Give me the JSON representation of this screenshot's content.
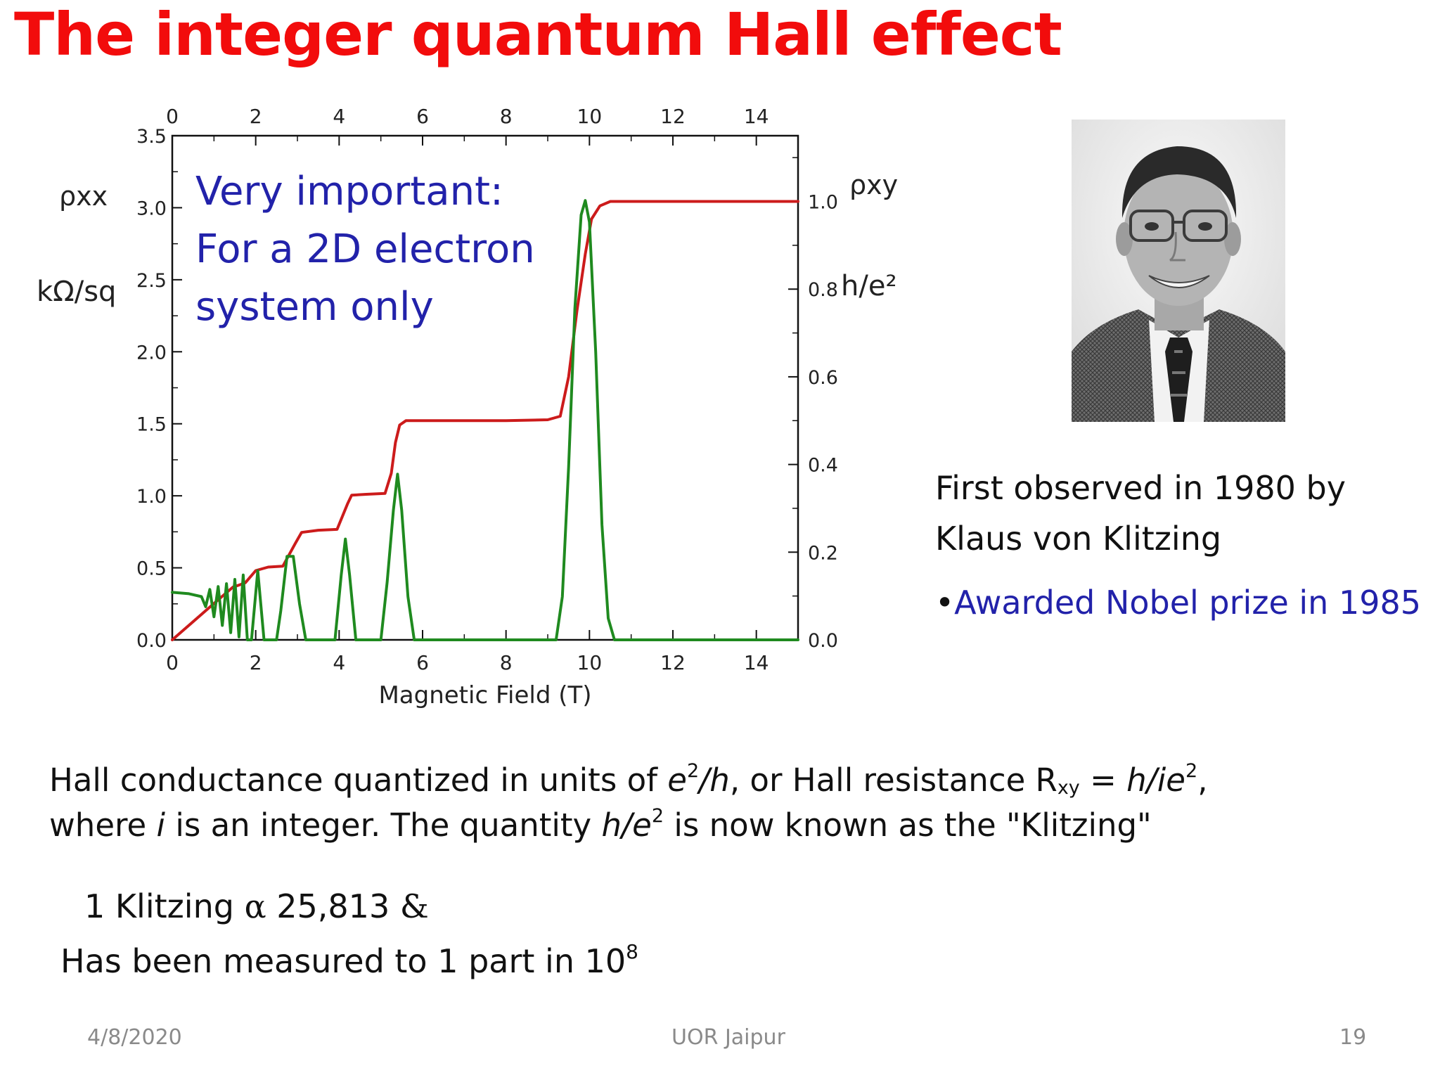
{
  "slide": {
    "title": "The integer quantum Hall effect",
    "note_lines": [
      "Very important:",
      "For a 2D electron",
      "system only"
    ],
    "credit_lines": [
      "First observed in 1980 by",
      "Klaus von Klitzing"
    ],
    "nobel_bullet": "•",
    "nobel_text": "Awarded Nobel prize in 1985",
    "body": {
      "l1a": "Hall conductance quantized in units of ",
      "e": "e",
      "sq": "2",
      "slash_h": "/h",
      "l1b": ", or Hall resistance R",
      "xy": "xy",
      "l1c": " = ",
      "h_ie": "h/ie",
      "comma": ",",
      "l2a": "where ",
      "i": "i",
      "l2b": " is an integer. The quantity ",
      "h_e": "h/e",
      "l2c": " is now known as the \"Klitzing\""
    },
    "klitzing_line": {
      "a": "1 Klitzing ",
      "alpha": "α",
      "b": " 25,813 ",
      "amp": "&"
    },
    "measured": {
      "text": "Has been measured to 1 part in 10",
      "exp": "8"
    },
    "footer": {
      "date": "4/8/2020",
      "center": "UOR Jaipur",
      "page": "19"
    },
    "photo_icon": "portrait-photo"
  },
  "chart_data": {
    "type": "line",
    "xlabel": "Magnetic Field  (T)",
    "xlim": [
      0,
      15
    ],
    "x_ticks": [
      0,
      2,
      4,
      6,
      8,
      10,
      12,
      14
    ],
    "y_left": {
      "label_symbol": "ρxx",
      "label_unit": "kΩ/sq",
      "lim": [
        0,
        3.5
      ],
      "ticks": [
        "0.0",
        "0.5",
        "1.0",
        "1.5",
        "2.0",
        "2.5",
        "3.0",
        "3.5"
      ]
    },
    "y_right": {
      "label_symbol": "ρxy",
      "label_unit": "h/e²",
      "lim": [
        0,
        1.15
      ],
      "ticks": [
        "0.0",
        "0.2",
        "0.4",
        "0.6",
        "0.8",
        "1.0"
      ]
    },
    "colors": {
      "rho_xy": "#cc1b1b",
      "rho_xx": "#1f8a1f",
      "axes": "#111111"
    },
    "series": [
      {
        "axis": "right",
        "points": [
          [
            0,
            0
          ],
          [
            1,
            0.083
          ],
          [
            1.45,
            0.12
          ],
          [
            1.6,
            0.125
          ],
          [
            1.75,
            0.13
          ],
          [
            2.0,
            0.158
          ],
          [
            2.3,
            0.166
          ],
          [
            2.65,
            0.168
          ],
          [
            2.95,
            0.22
          ],
          [
            3.1,
            0.245
          ],
          [
            3.5,
            0.25
          ],
          [
            3.95,
            0.252
          ],
          [
            4.2,
            0.31
          ],
          [
            4.3,
            0.33
          ],
          [
            4.65,
            0.332
          ],
          [
            5.1,
            0.334
          ],
          [
            5.25,
            0.38
          ],
          [
            5.35,
            0.45
          ],
          [
            5.45,
            0.49
          ],
          [
            5.6,
            0.5
          ],
          [
            6.5,
            0.5
          ],
          [
            8.0,
            0.5
          ],
          [
            9.0,
            0.502
          ],
          [
            9.3,
            0.51
          ],
          [
            9.5,
            0.6
          ],
          [
            9.7,
            0.75
          ],
          [
            9.9,
            0.88
          ],
          [
            10.05,
            0.96
          ],
          [
            10.25,
            0.99
          ],
          [
            10.5,
            1.0
          ],
          [
            12,
            1.0
          ],
          [
            15,
            1.0
          ]
        ]
      },
      {
        "axis": "left",
        "points": [
          [
            0,
            0.33
          ],
          [
            0.4,
            0.32
          ],
          [
            0.7,
            0.3
          ],
          [
            0.8,
            0.23
          ],
          [
            0.9,
            0.35
          ],
          [
            1.0,
            0.16
          ],
          [
            1.1,
            0.37
          ],
          [
            1.2,
            0.1
          ],
          [
            1.3,
            0.39
          ],
          [
            1.4,
            0.05
          ],
          [
            1.5,
            0.42
          ],
          [
            1.6,
            0.02
          ],
          [
            1.7,
            0.45
          ],
          [
            1.8,
            0.0
          ],
          [
            1.9,
            0.0
          ],
          [
            2.05,
            0.48
          ],
          [
            2.2,
            0.0
          ],
          [
            2.5,
            0.0
          ],
          [
            2.6,
            0.2
          ],
          [
            2.75,
            0.58
          ],
          [
            2.9,
            0.58
          ],
          [
            3.05,
            0.25
          ],
          [
            3.2,
            0.0
          ],
          [
            3.9,
            0.0
          ],
          [
            4.05,
            0.45
          ],
          [
            4.15,
            0.7
          ],
          [
            4.25,
            0.45
          ],
          [
            4.4,
            0.0
          ],
          [
            5.0,
            0.0
          ],
          [
            5.15,
            0.4
          ],
          [
            5.3,
            0.9
          ],
          [
            5.4,
            1.15
          ],
          [
            5.5,
            0.9
          ],
          [
            5.65,
            0.3
          ],
          [
            5.8,
            0.0
          ],
          [
            9.2,
            0.0
          ],
          [
            9.35,
            0.3
          ],
          [
            9.5,
            1.2
          ],
          [
            9.65,
            2.3
          ],
          [
            9.8,
            2.95
          ],
          [
            9.9,
            3.05
          ],
          [
            10.0,
            2.9
          ],
          [
            10.15,
            2.0
          ],
          [
            10.3,
            0.8
          ],
          [
            10.45,
            0.15
          ],
          [
            10.6,
            0.0
          ],
          [
            15,
            0.0
          ]
        ]
      }
    ]
  }
}
